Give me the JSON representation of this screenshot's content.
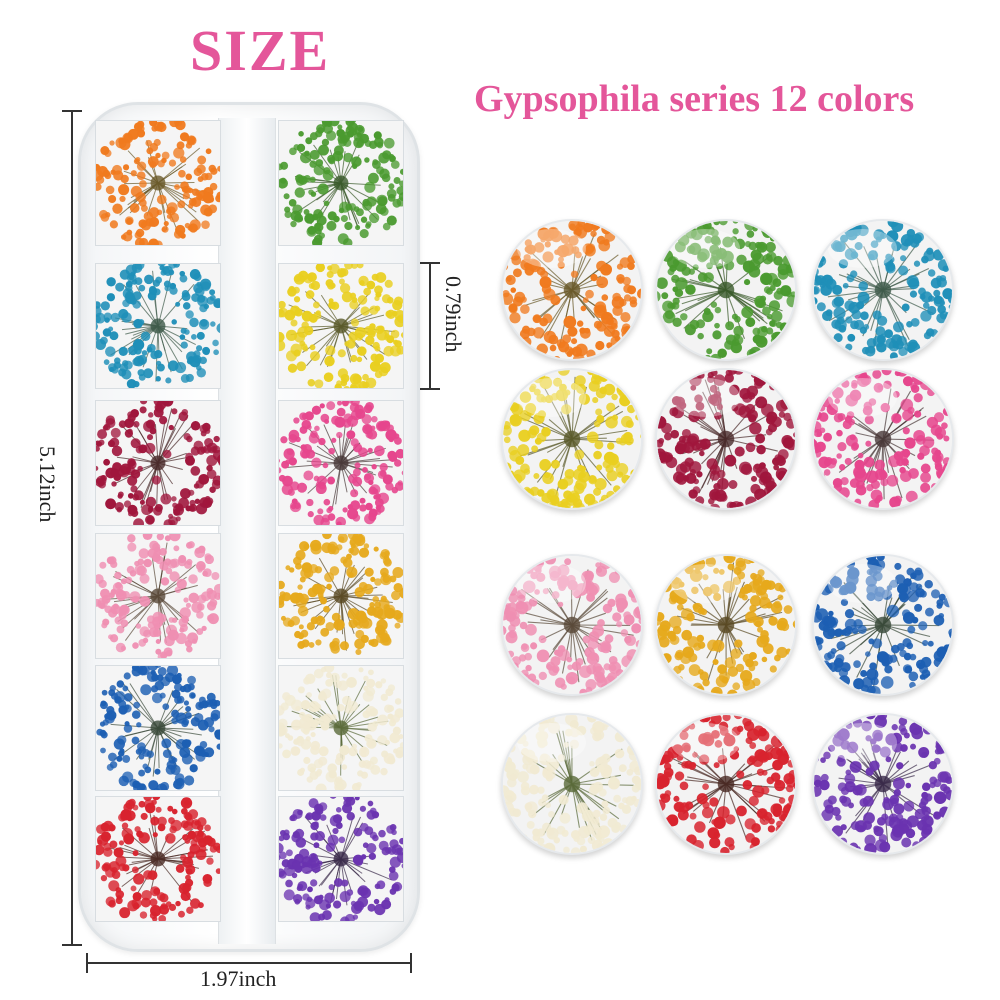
{
  "title": "SIZE",
  "subtitle": "Gypsophila series 12 colors",
  "dimensions": {
    "height": "5.12inch",
    "width": "1.97inch",
    "cell": "0.79inch"
  },
  "tray": {
    "left_column": [
      {
        "name": "orange",
        "color": "#f07a1e",
        "center": "#6a5a2a"
      },
      {
        "name": "teal-blue",
        "color": "#1f8fb8",
        "center": "#3e5a4a"
      },
      {
        "name": "burgundy",
        "color": "#a0163c",
        "center": "#4a2a2a"
      },
      {
        "name": "light-pink",
        "color": "#ef8fb2",
        "center": "#5a4a3a"
      },
      {
        "name": "royal-blue",
        "color": "#1d5fb3",
        "center": "#3a4a3a"
      },
      {
        "name": "red",
        "color": "#d8232e",
        "center": "#4a2a24"
      }
    ],
    "right_column": [
      {
        "name": "green",
        "color": "#4a9a2f",
        "center": "#3a5a2a"
      },
      {
        "name": "yellow",
        "color": "#e9cf20",
        "center": "#5a5a2a"
      },
      {
        "name": "hot-pink",
        "color": "#e6468d",
        "center": "#4a3a3a"
      },
      {
        "name": "golden-yellow",
        "color": "#e6a91c",
        "center": "#5a4a24"
      },
      {
        "name": "cream-white",
        "color": "#f1ead2",
        "center": "#5a6a3a"
      },
      {
        "name": "purple",
        "color": "#6a33b0",
        "center": "#3a2a4a"
      }
    ]
  },
  "swatches": [
    {
      "name": "orange",
      "color": "#f07a1e",
      "center": "#6a5a2a"
    },
    {
      "name": "green",
      "color": "#4a9a2f",
      "center": "#3a5a2a"
    },
    {
      "name": "teal-blue",
      "color": "#1f8fb8",
      "center": "#3e5a4a"
    },
    {
      "name": "yellow",
      "color": "#e9cf20",
      "center": "#5a5a2a"
    },
    {
      "name": "burgundy",
      "color": "#a0163c",
      "center": "#4a2a2a"
    },
    {
      "name": "hot-pink",
      "color": "#e6468d",
      "center": "#4a3a3a"
    },
    {
      "name": "light-pink",
      "color": "#ef8fb2",
      "center": "#5a4a3a"
    },
    {
      "name": "golden-yellow",
      "color": "#e6a91c",
      "center": "#5a4a24"
    },
    {
      "name": "royal-blue",
      "color": "#1d5fb3",
      "center": "#3a4a3a"
    },
    {
      "name": "cream-white",
      "color": "#f1ead2",
      "center": "#5a6a3a"
    },
    {
      "name": "red",
      "color": "#d8232e",
      "center": "#4a2a24"
    },
    {
      "name": "purple",
      "color": "#6a33b0",
      "center": "#3a2a4a"
    }
  ]
}
